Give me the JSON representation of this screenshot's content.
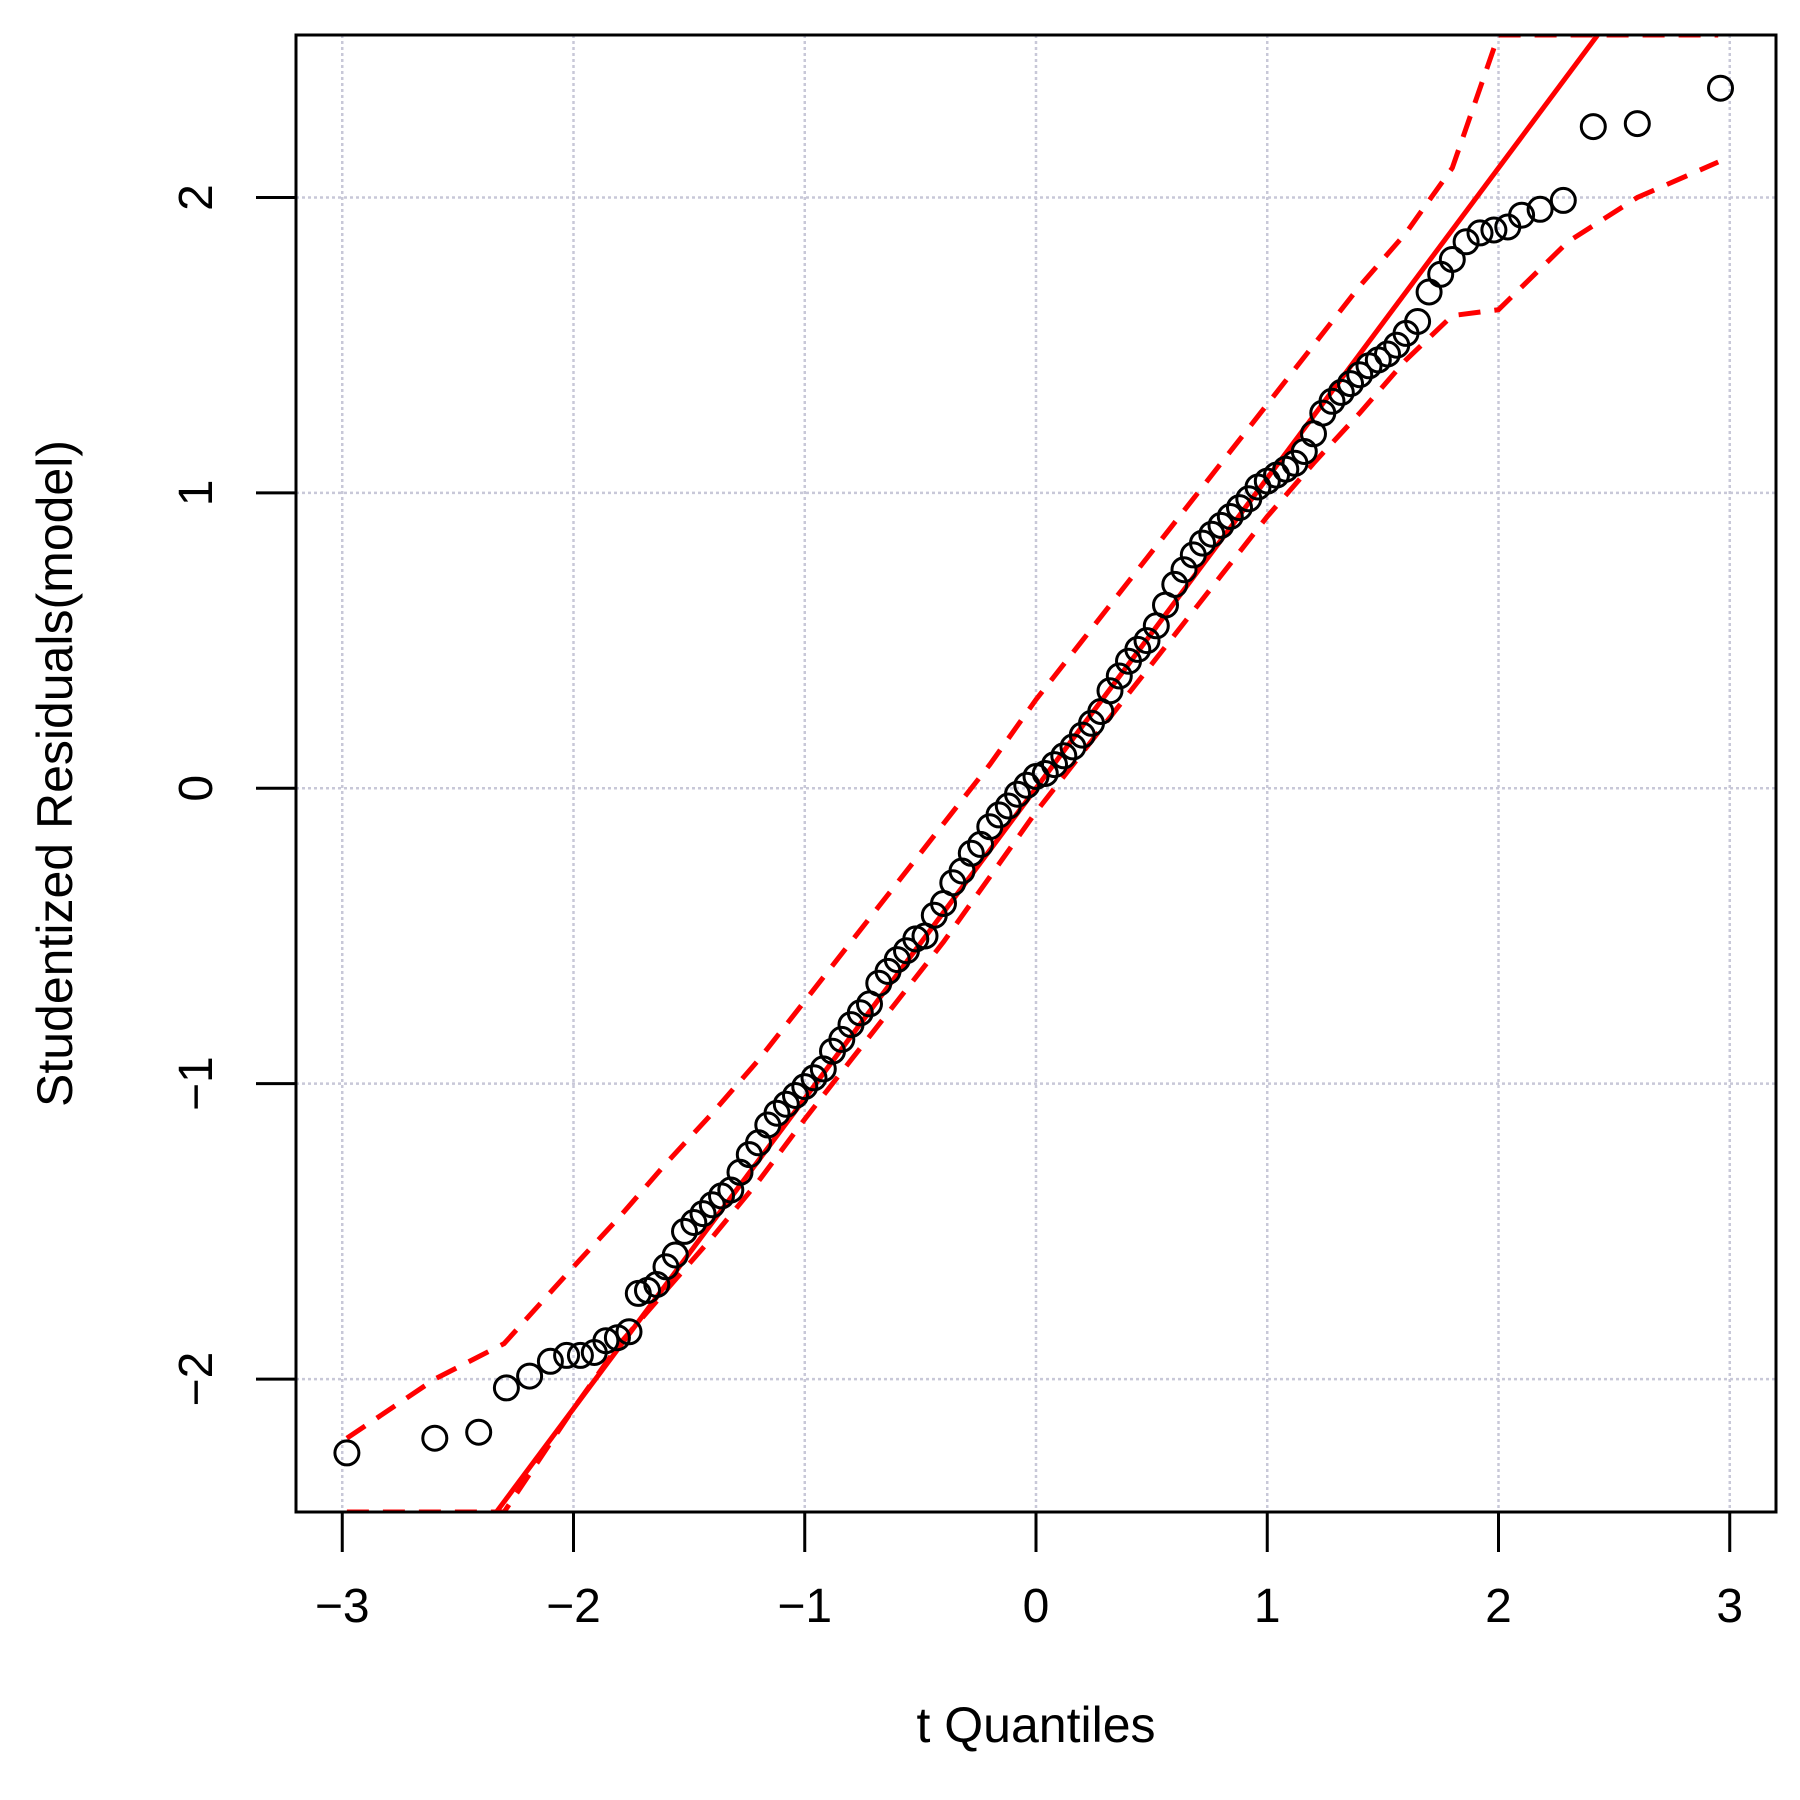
{
  "chart_data": {
    "type": "scatter",
    "title": "",
    "xlabel": "t Quantiles",
    "ylabel": "Studentized Residuals(model)",
    "xlim": [
      -3.2,
      3.2
    ],
    "ylim": [
      -2.45,
      2.55
    ],
    "xticks": [
      -3,
      -2,
      -1,
      0,
      1,
      2,
      3
    ],
    "yticks": [
      -2,
      -1,
      0,
      1,
      2
    ],
    "xtick_labels": [
      "−3",
      "−2",
      "−1",
      "0",
      "1",
      "2",
      "3"
    ],
    "ytick_labels": [
      "−2",
      "−1",
      "0",
      "1",
      "2"
    ],
    "grid": true,
    "colors": {
      "points": "#000000",
      "reference_line": "#ff0000",
      "envelope": "#ff0000",
      "grid": "#c8c8d8"
    },
    "reference_line": {
      "intercept": 0.0,
      "slope": 1.05
    },
    "envelope": {
      "x": [
        -2.98,
        -2.6,
        -2.3,
        -2.0,
        -1.8,
        -1.6,
        -1.4,
        -1.2,
        -1.0,
        -0.8,
        -0.6,
        -0.4,
        -0.2,
        0.0,
        0.2,
        0.4,
        0.6,
        0.8,
        1.0,
        1.2,
        1.4,
        1.6,
        1.8,
        2.0,
        2.3,
        2.6,
        2.95
      ],
      "lower": [
        -2.45,
        -2.45,
        -2.45,
        -2.1,
        -1.88,
        -1.7,
        -1.52,
        -1.33,
        -1.12,
        -0.92,
        -0.72,
        -0.52,
        -0.3,
        -0.08,
        0.12,
        0.32,
        0.52,
        0.72,
        0.92,
        1.1,
        1.27,
        1.45,
        1.6,
        1.62,
        1.85,
        2.0,
        2.12
      ],
      "upper": [
        -2.2,
        -2.0,
        -1.88,
        -1.62,
        -1.45,
        -1.27,
        -1.1,
        -0.92,
        -0.72,
        -0.52,
        -0.32,
        -0.12,
        0.08,
        0.3,
        0.5,
        0.7,
        0.9,
        1.1,
        1.3,
        1.5,
        1.7,
        1.88,
        2.1,
        2.55,
        2.55,
        2.55,
        2.55
      ]
    },
    "series": [
      {
        "x": [
          -2.98,
          -2.6,
          -2.41,
          -2.29,
          -2.19,
          -2.1,
          -2.03,
          -1.97,
          -1.91,
          -1.86,
          -1.81,
          -1.76,
          -1.72,
          -1.68,
          -1.64,
          -1.6,
          -1.56,
          -1.52,
          -1.48,
          -1.44,
          -1.4,
          -1.36,
          -1.32,
          -1.28,
          -1.24,
          -1.2,
          -1.16,
          -1.12,
          -1.08,
          -1.04,
          -1.0,
          -0.96,
          -0.92,
          -0.88,
          -0.84,
          -0.8,
          -0.76,
          -0.72,
          -0.68,
          -0.64,
          -0.6,
          -0.56,
          -0.52,
          -0.48,
          -0.44,
          -0.4,
          -0.36,
          -0.32,
          -0.28,
          -0.24,
          -0.2,
          -0.16,
          -0.12,
          -0.08,
          -0.04,
          0.0,
          0.04,
          0.08,
          0.12,
          0.16,
          0.2,
          0.24,
          0.28,
          0.32,
          0.36,
          0.4,
          0.44,
          0.48,
          0.52,
          0.56,
          0.6,
          0.64,
          0.68,
          0.72,
          0.76,
          0.8,
          0.84,
          0.88,
          0.92,
          0.96,
          1.0,
          1.04,
          1.08,
          1.12,
          1.16,
          1.2,
          1.24,
          1.28,
          1.32,
          1.36,
          1.4,
          1.44,
          1.48,
          1.52,
          1.56,
          1.6,
          1.65,
          1.7,
          1.75,
          1.8,
          1.86,
          1.92,
          1.98,
          2.04,
          2.1,
          2.18,
          2.28,
          2.41,
          2.6,
          2.96
        ],
        "y": [
          -2.25,
          -2.2,
          -2.18,
          -2.03,
          -1.99,
          -1.94,
          -1.92,
          -1.92,
          -1.91,
          -1.87,
          -1.86,
          -1.84,
          -1.71,
          -1.7,
          -1.68,
          -1.62,
          -1.58,
          -1.5,
          -1.47,
          -1.44,
          -1.41,
          -1.38,
          -1.36,
          -1.3,
          -1.24,
          -1.2,
          -1.14,
          -1.1,
          -1.07,
          -1.04,
          -1.01,
          -0.98,
          -0.95,
          -0.89,
          -0.85,
          -0.8,
          -0.76,
          -0.73,
          -0.66,
          -0.62,
          -0.58,
          -0.55,
          -0.51,
          -0.5,
          -0.43,
          -0.39,
          -0.32,
          -0.28,
          -0.22,
          -0.19,
          -0.13,
          -0.09,
          -0.06,
          -0.02,
          0.01,
          0.04,
          0.05,
          0.08,
          0.11,
          0.14,
          0.18,
          0.22,
          0.26,
          0.33,
          0.38,
          0.43,
          0.47,
          0.5,
          0.55,
          0.62,
          0.69,
          0.74,
          0.79,
          0.83,
          0.86,
          0.89,
          0.92,
          0.95,
          0.98,
          1.02,
          1.04,
          1.06,
          1.08,
          1.1,
          1.14,
          1.2,
          1.27,
          1.31,
          1.34,
          1.37,
          1.4,
          1.43,
          1.45,
          1.47,
          1.5,
          1.54,
          1.58,
          1.68,
          1.74,
          1.79,
          1.85,
          1.88,
          1.89,
          1.9,
          1.94,
          1.96,
          1.99,
          2.24,
          2.25,
          2.37
        ]
      }
    ]
  }
}
